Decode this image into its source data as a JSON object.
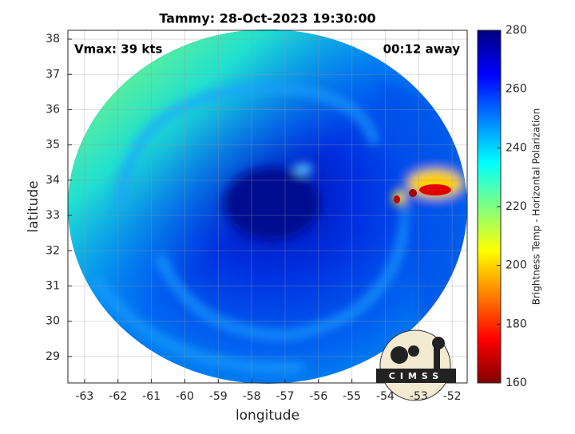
{
  "chart_data": {
    "type": "image",
    "title": "Tammy: 28-Oct-2023 19:30:00",
    "annotations": [
      "Vmax: 39 kts",
      "00:12 away"
    ],
    "xlabel": "longitude",
    "ylabel": "latitude",
    "xlim": [
      -63.5,
      -51.55
    ],
    "ylim": [
      28.25,
      38.25
    ],
    "xticks": [
      -63,
      -62,
      -61,
      -60,
      -59,
      -58,
      -57,
      -56,
      -55,
      -54,
      -53,
      -52
    ],
    "yticks": [
      29,
      30,
      31,
      32,
      33,
      34,
      35,
      36,
      37,
      38
    ],
    "grid": true,
    "colorbar": {
      "label": "Brightness Temp - Horizontal Polarization",
      "lim": [
        160,
        280
      ],
      "ticks": [
        160,
        180,
        200,
        220,
        240,
        260,
        280
      ]
    },
    "logo": "CIMSS"
  }
}
